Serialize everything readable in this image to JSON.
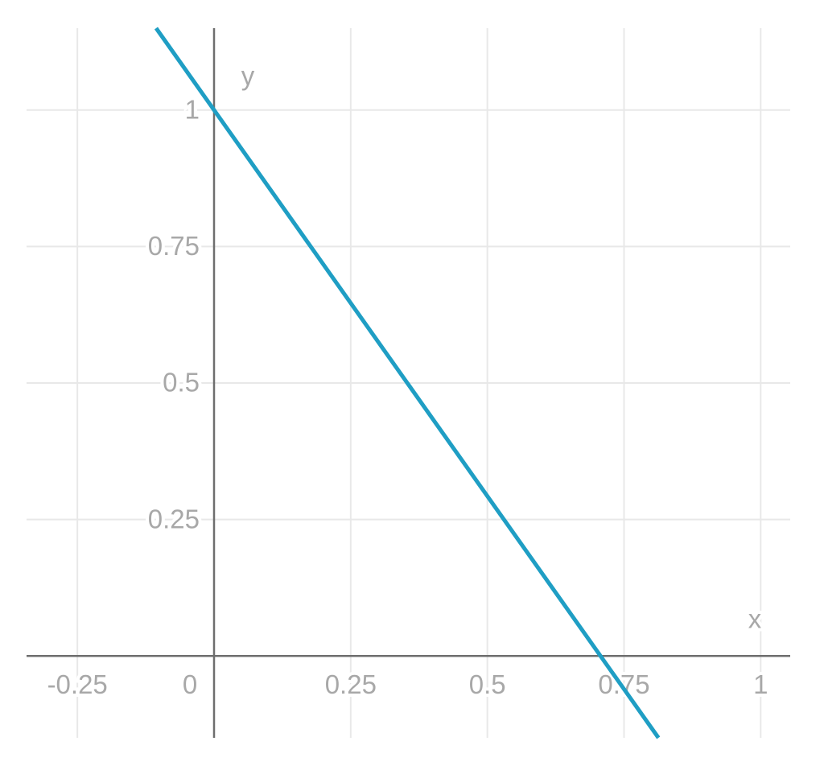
{
  "chart_data": {
    "type": "line",
    "x_label": "x",
    "y_label": "y",
    "x": [
      -0.106,
      0.813
    ],
    "series": [
      {
        "color": "#1f9ec4",
        "values": [
          1.15,
          -0.15
        ]
      }
    ],
    "xlim": [
      -0.343,
      1.054
    ],
    "ylim": [
      -0.15,
      1.15
    ],
    "xticks": [
      -0.25,
      0,
      0.25,
      0.5,
      0.75,
      1
    ],
    "yticks": [
      0.25,
      0.5,
      0.75,
      1
    ],
    "grid": true
  }
}
